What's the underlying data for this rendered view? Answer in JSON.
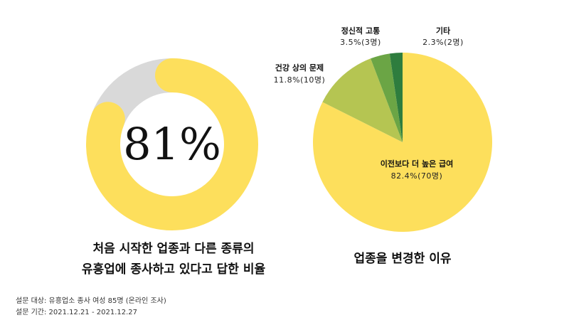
{
  "chart_data": [
    {
      "type": "donut",
      "center_label": "81%",
      "caption_lines": [
        "처음 시작한 업종과 다른 종류의",
        "유흥업에 종사하고 있다고 답한 비율"
      ],
      "value": 81,
      "max": 100,
      "colors": {
        "value": "#FDDF5C",
        "remainder": "#D9D9D9"
      }
    },
    {
      "type": "pie",
      "caption": "업종을 변경한 이유",
      "slices": [
        {
          "label": "이전보다 더 높은 급여",
          "value_text": "82.4%(70명)",
          "value": 82.4,
          "count": 70,
          "color": "#FDDF5C"
        },
        {
          "label": "건강 상의 문제",
          "value_text": "11.8%(10명)",
          "value": 11.8,
          "count": 10,
          "color": "#B5C552"
        },
        {
          "label": "정신적 고통",
          "value_text": "3.5%(3명)",
          "value": 3.5,
          "count": 3,
          "color": "#6BA545"
        },
        {
          "label": "기타",
          "value_text": "2.3%(2명)",
          "value": 2.3,
          "count": 2,
          "color": "#2E7D3E"
        }
      ]
    }
  ],
  "footnotes": {
    "line1": "설문 대상: 유흥업소 종사 여성 85명 (온라인 조사)",
    "line2": "설문 기간: 2021.12.21 - 2021.12.27"
  }
}
